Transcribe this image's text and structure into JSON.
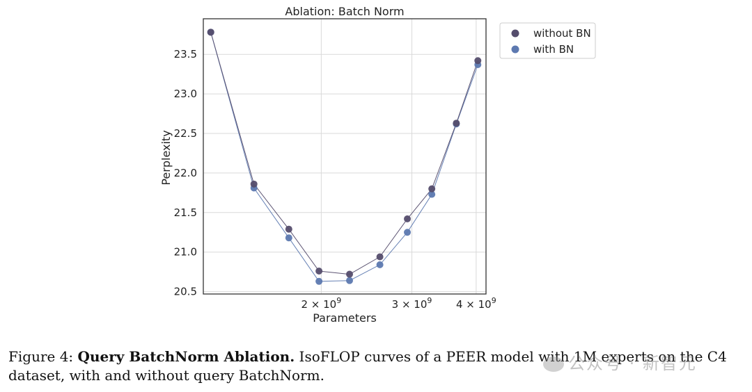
{
  "chart_data": {
    "type": "scatter",
    "title": "Ablation: Batch Norm",
    "xlabel": "Parameters",
    "ylabel": "Perplexity",
    "xscale": "log",
    "xlim": [
      1180000000.0,
      4180000000.0
    ],
    "ylim": [
      20.47,
      23.95
    ],
    "grid": true,
    "legend_position": "outside-top-right",
    "yticks": [
      20.5,
      21.0,
      21.5,
      22.0,
      22.5,
      23.0,
      23.5
    ],
    "ytick_labels": [
      "20.5",
      "21.0",
      "21.5",
      "22.0",
      "22.5",
      "23.0",
      "23.5"
    ],
    "xticks": [
      2000000000.0,
      3000000000.0,
      4000000000.0
    ],
    "xtick_labels": [
      {
        "base": "2 × 10",
        "exp": "9"
      },
      {
        "base": "3 × 10",
        "exp": "9"
      },
      {
        "base": "4 × 10",
        "exp": "9"
      }
    ],
    "series": [
      {
        "name": "without BN",
        "color": "#554d6d",
        "x": [
          1220000000.0,
          1480000000.0,
          1730000000.0,
          1980000000.0,
          2270000000.0,
          2600000000.0,
          2940000000.0,
          3280000000.0,
          3660000000.0,
          4030000000.0
        ],
        "y": [
          23.78,
          21.86,
          21.29,
          20.76,
          20.72,
          20.94,
          21.42,
          21.8,
          22.63,
          23.42
        ]
      },
      {
        "name": "with BN",
        "color": "#5d79b0",
        "x": [
          1220000000.0,
          1480000000.0,
          1730000000.0,
          1980000000.0,
          2270000000.0,
          2600000000.0,
          2940000000.0,
          3280000000.0,
          3660000000.0,
          4030000000.0
        ],
        "y": [
          23.78,
          21.81,
          21.18,
          20.63,
          20.64,
          20.84,
          21.25,
          21.73,
          22.62,
          23.37
        ]
      }
    ]
  },
  "caption": {
    "prefix": "Figure 4: ",
    "bold": "Query BatchNorm Ablation.",
    "text": " IsoFLOP curves of a PEER model with 1M experts on the C4 dataset, with and without query BatchNorm."
  },
  "watermark": "公众号 · 新智元"
}
